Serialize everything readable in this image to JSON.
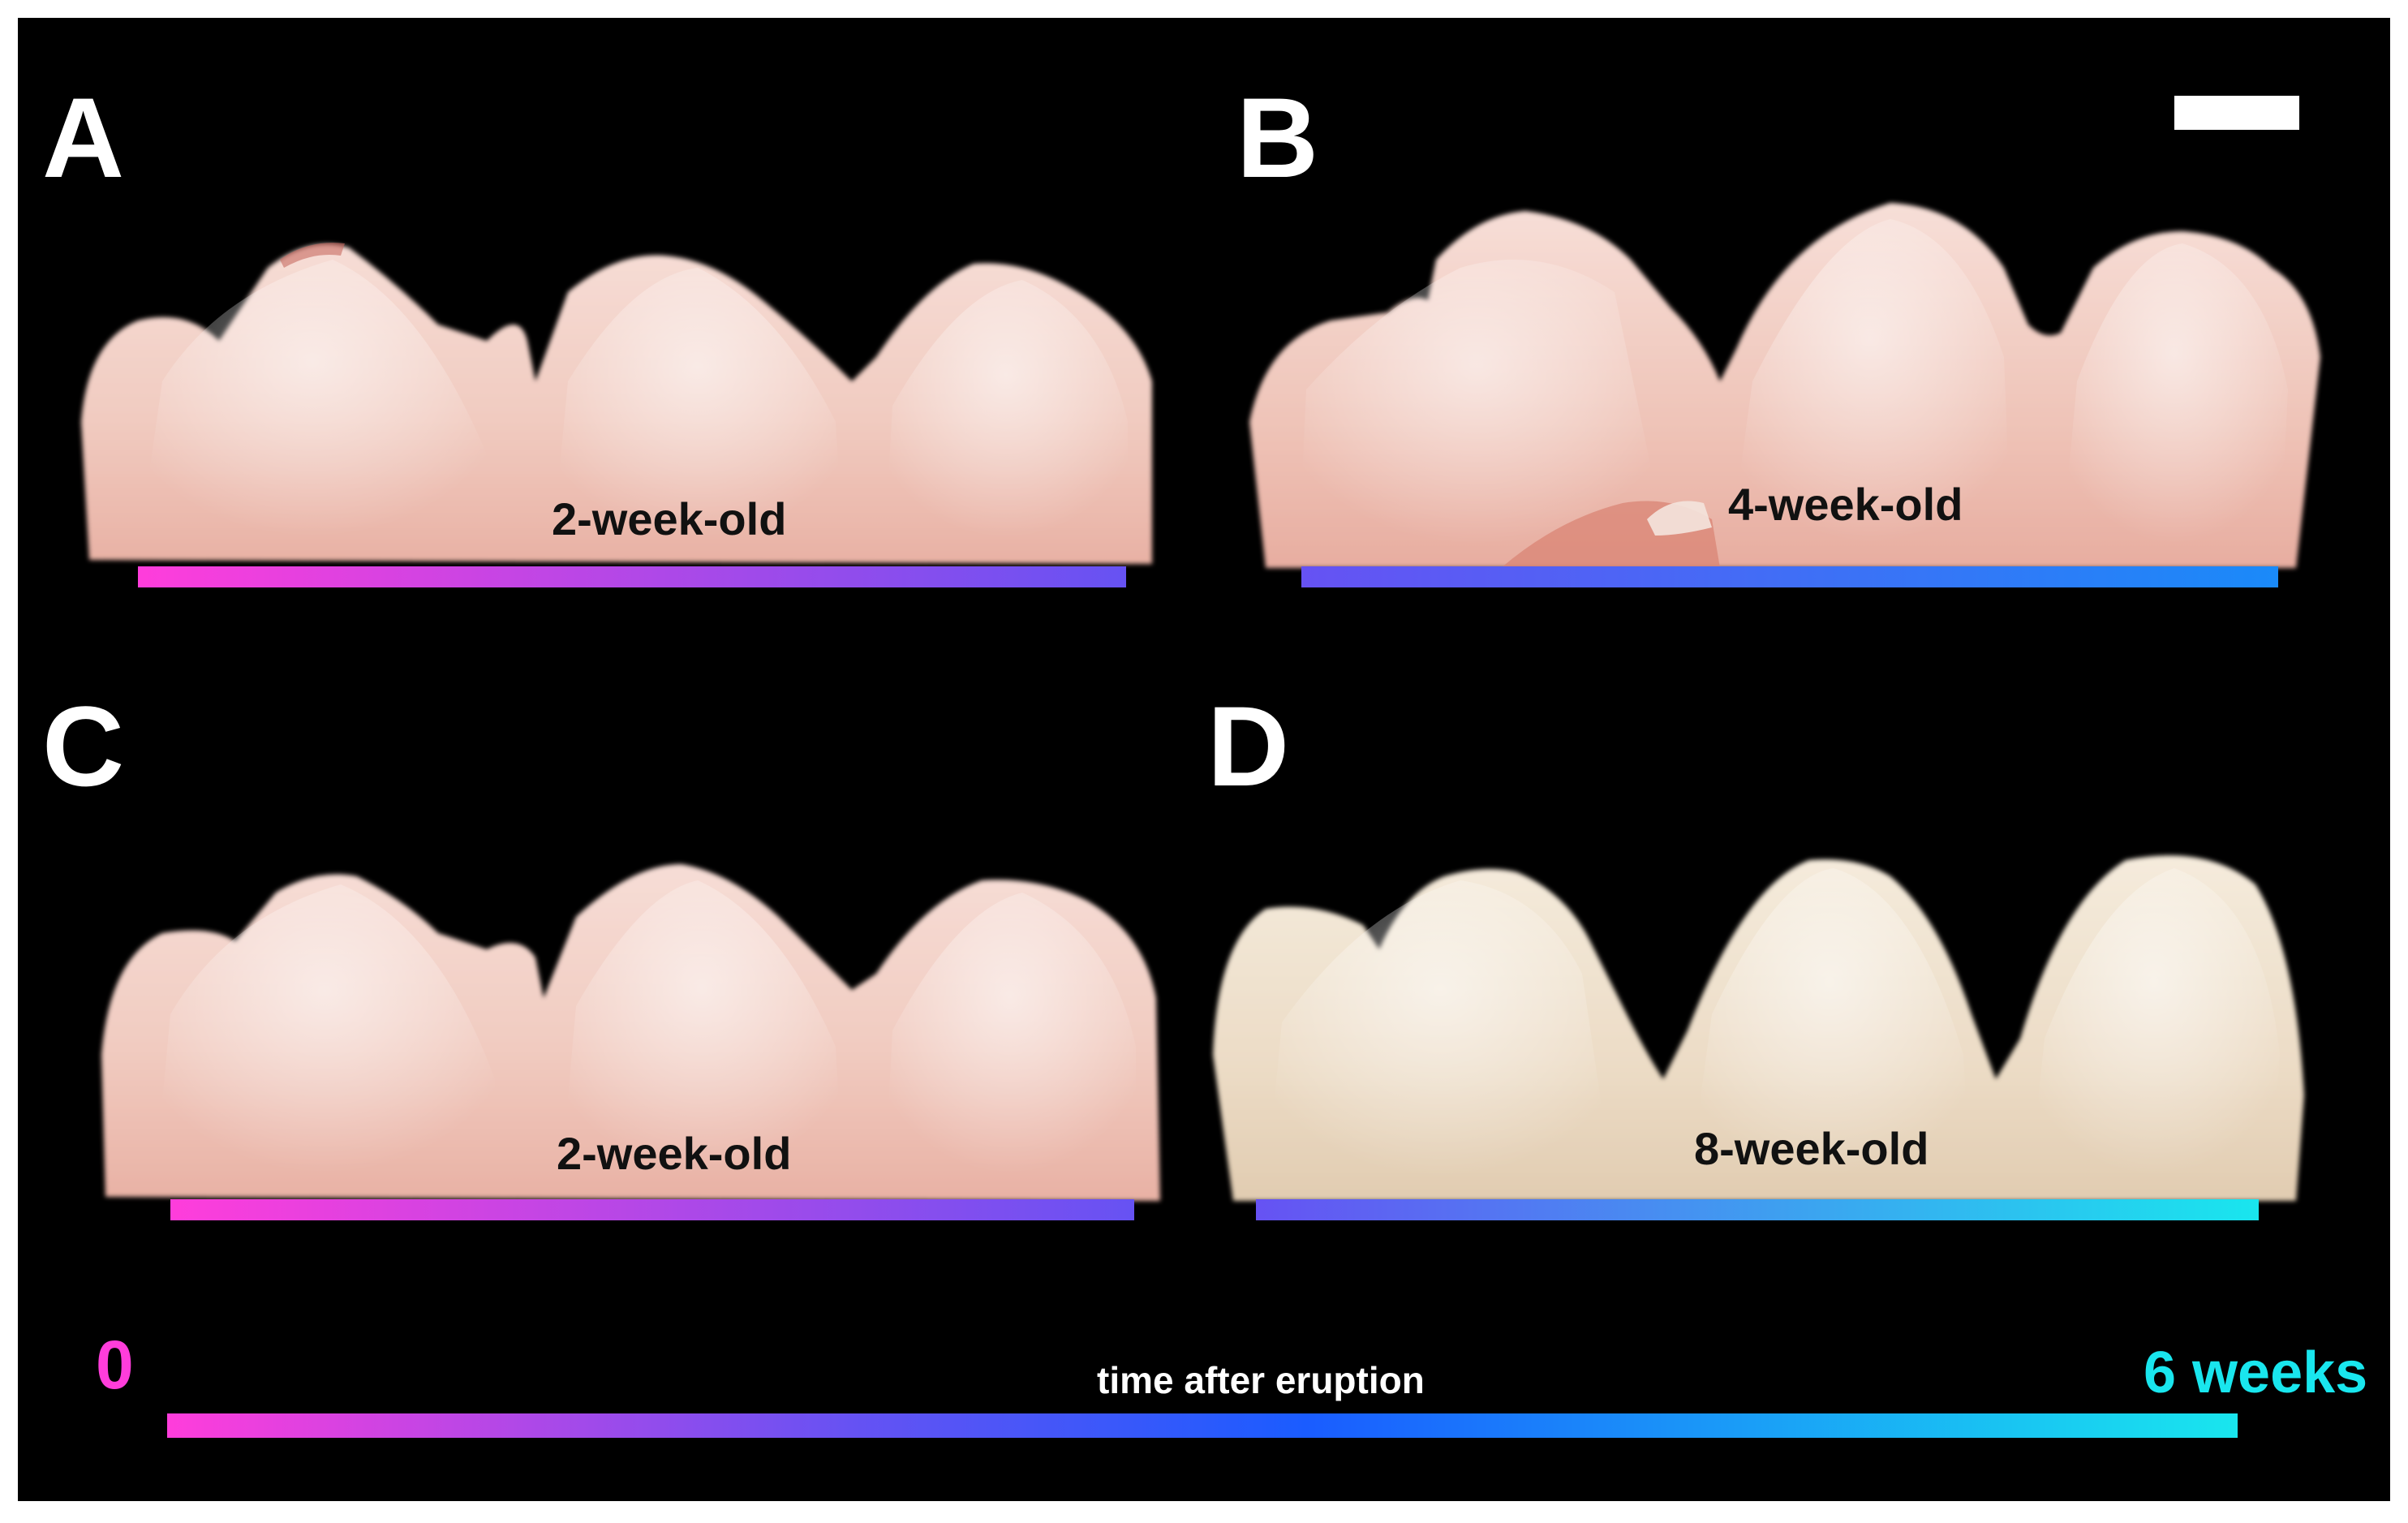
{
  "panels": [
    {
      "letter": "A",
      "age": "2-week-old",
      "bar_from_weeks": 0,
      "bar_to_weeks": 2
    },
    {
      "letter": "B",
      "age": "4-week-old",
      "bar_from_weeks": 2,
      "bar_to_weeks": 4
    },
    {
      "letter": "C",
      "age": "2-week-old",
      "bar_from_weeks": 0,
      "bar_to_weeks": 2
    },
    {
      "letter": "D",
      "age": "8-week-old",
      "bar_from_weeks": 2,
      "bar_to_weeks": 6
    }
  ],
  "timeline": {
    "start_label": "0",
    "end_label": "6 weeks",
    "title": "time after eruption"
  },
  "colors": {
    "background": "#000000",
    "start_magenta": "#ff3ddb",
    "mid_blue": "#1a5cff",
    "end_cyan": "#19e6ee",
    "tooth_pink": "#f3cfc5",
    "tooth_ivory": "#efe2d0"
  }
}
